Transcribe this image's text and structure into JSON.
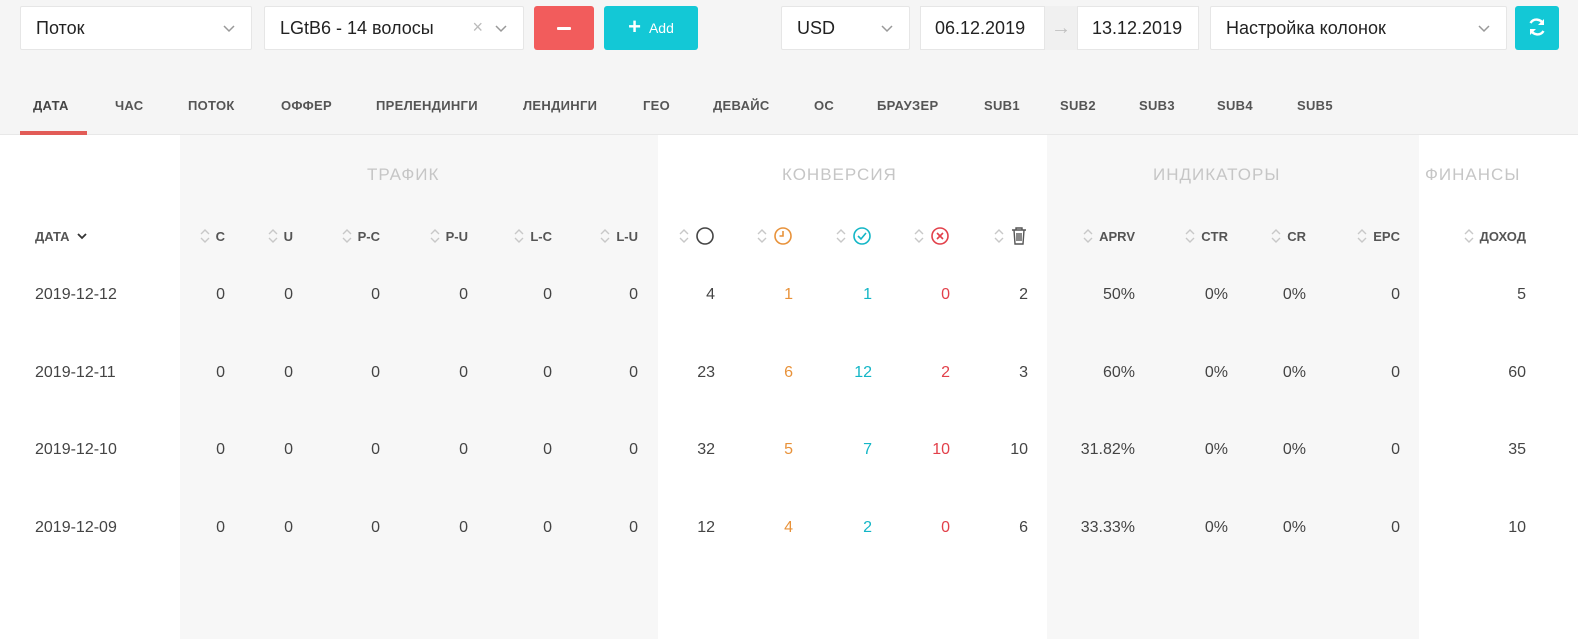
{
  "toolbar": {
    "flow_select": "Поток",
    "offer_select": "LGtB6 - 14 волосы",
    "clear_symbol": "×",
    "add_label": "Add",
    "currency": "USD",
    "date_from": "06.12.2019",
    "date_arrow": "→",
    "date_to": "13.12.2019",
    "columns_select": "Настройка колонок"
  },
  "tabs": [
    "ДАТА",
    "ЧАС",
    "ПОТОК",
    "ОФФЕР",
    "ПРЕЛЕНДИНГИ",
    "ЛЕНДИНГИ",
    "ГЕО",
    "ДЕВАЙС",
    "ОС",
    "БРАУЗЕР",
    "SUB1",
    "SUB2",
    "SUB3",
    "SUB4",
    "SUB5"
  ],
  "active_tab": "ДАТА",
  "groups": {
    "traffic": "ТРАФИК",
    "conversion": "КОНВЕРСИЯ",
    "indicators": "ИНДИКАТОРЫ",
    "finance": "ФИНАНСЫ"
  },
  "columns": {
    "date": "ДАТА",
    "c": "C",
    "u": "U",
    "pc": "P-C",
    "pu": "P-U",
    "lc": "L-C",
    "lu": "L-U",
    "total_icon": "circle-icon",
    "hold_icon": "clock-icon",
    "approved_icon": "check-circle-icon",
    "rejected_icon": "x-circle-icon",
    "trash_icon": "trash-icon",
    "aprv": "APRV",
    "ctr": "CTR",
    "cr": "CR",
    "epc": "EPC",
    "income": "ДОХОД"
  },
  "rows": [
    {
      "date": "2019-12-12",
      "c": "0",
      "u": "0",
      "pc": "0",
      "pu": "0",
      "lc": "0",
      "lu": "0",
      "total": "4",
      "hold": "1",
      "approved": "1",
      "rejected": "0",
      "trash": "2",
      "aprv": "50%",
      "ctr": "0%",
      "cr": "0%",
      "epc": "0",
      "income": "5"
    },
    {
      "date": "2019-12-11",
      "c": "0",
      "u": "0",
      "pc": "0",
      "pu": "0",
      "lc": "0",
      "lu": "0",
      "total": "23",
      "hold": "6",
      "approved": "12",
      "rejected": "2",
      "trash": "3",
      "aprv": "60%",
      "ctr": "0%",
      "cr": "0%",
      "epc": "0",
      "income": "60"
    },
    {
      "date": "2019-12-10",
      "c": "0",
      "u": "0",
      "pc": "0",
      "pu": "0",
      "lc": "0",
      "lu": "0",
      "total": "32",
      "hold": "5",
      "approved": "7",
      "rejected": "10",
      "trash": "10",
      "aprv": "31.82%",
      "ctr": "0%",
      "cr": "0%",
      "epc": "0",
      "income": "35"
    },
    {
      "date": "2019-12-09",
      "c": "0",
      "u": "0",
      "pc": "0",
      "pu": "0",
      "lc": "0",
      "lu": "0",
      "total": "12",
      "hold": "4",
      "approved": "2",
      "rejected": "0",
      "trash": "6",
      "aprv": "33.33%",
      "ctr": "0%",
      "cr": "0%",
      "epc": "0",
      "income": "10"
    }
  ],
  "colors": {
    "accent": "#13c8d6",
    "danger": "#f25c5c",
    "hold": "#e8923a",
    "approved": "#13b6c6",
    "rejected": "#e2404a"
  }
}
